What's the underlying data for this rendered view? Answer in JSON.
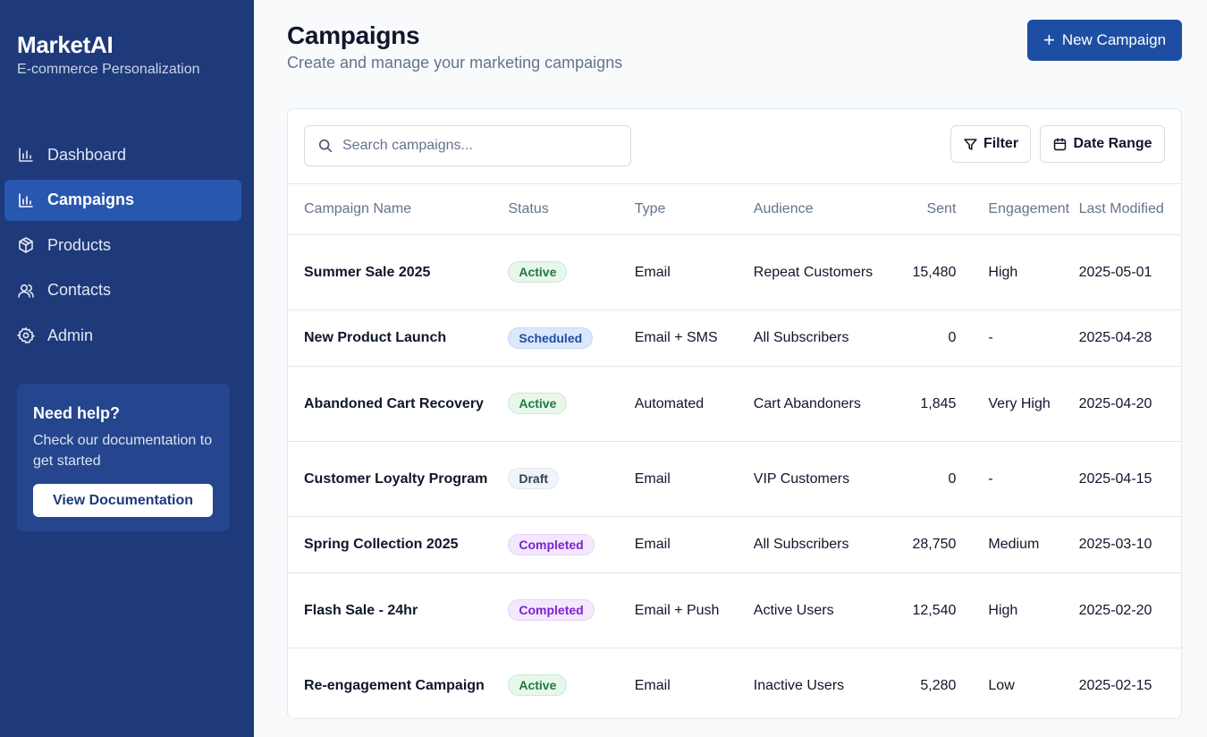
{
  "sidebar": {
    "brand_title": "MarketAI",
    "brand_subtitle": "E-commerce Personalization",
    "items": [
      {
        "label": "Dashboard",
        "icon": "bar-chart-icon"
      },
      {
        "label": "Campaigns",
        "icon": "bar-chart-icon",
        "active": true
      },
      {
        "label": "Products",
        "icon": "box-icon"
      },
      {
        "label": "Contacts",
        "icon": "users-icon"
      },
      {
        "label": "Admin",
        "icon": "gear-icon"
      }
    ],
    "help": {
      "title": "Need help?",
      "text": "Check our documentation to get started",
      "button": "View Documentation"
    }
  },
  "header": {
    "title": "Campaigns",
    "subtitle": "Create and manage your marketing campaigns",
    "new_button": "New Campaign"
  },
  "toolbar": {
    "search_placeholder": "Search campaigns...",
    "filter_label": "Filter",
    "date_range_label": "Date Range"
  },
  "table": {
    "columns": [
      "Campaign Name",
      "Status",
      "Type",
      "Audience",
      "Sent",
      "Engagement",
      "Last Modified"
    ],
    "rows": [
      {
        "name": "Summer Sale 2025",
        "status": "Active",
        "type": "Email",
        "audience": "Repeat Customers",
        "sent": "15,480",
        "engagement": "High",
        "modified": "2025-05-01"
      },
      {
        "name": "New Product Launch",
        "status": "Scheduled",
        "type": "Email + SMS",
        "audience": "All Subscribers",
        "sent": "0",
        "engagement": "-",
        "modified": "2025-04-28"
      },
      {
        "name": "Abandoned Cart Recovery",
        "status": "Active",
        "type": "Automated",
        "audience": "Cart Abandoners",
        "sent": "1,845",
        "engagement": "Very High",
        "modified": "2025-04-20"
      },
      {
        "name": "Customer Loyalty Program",
        "status": "Draft",
        "type": "Email",
        "audience": "VIP Customers",
        "sent": "0",
        "engagement": "-",
        "modified": "2025-04-15"
      },
      {
        "name": "Spring Collection 2025",
        "status": "Completed",
        "type": "Email",
        "audience": "All Subscribers",
        "sent": "28,750",
        "engagement": "Medium",
        "modified": "2025-03-10"
      },
      {
        "name": "Flash Sale - 24hr",
        "status": "Completed",
        "type": "Email + Push",
        "audience": "Active Users",
        "sent": "12,540",
        "engagement": "High",
        "modified": "2025-02-20"
      },
      {
        "name": "Re-engagement Campaign",
        "status": "Active",
        "type": "Email",
        "audience": "Inactive Users",
        "sent": "5,280",
        "engagement": "Low",
        "modified": "2025-02-15"
      }
    ]
  },
  "colors": {
    "sidebar_bg": "#1e3a7b",
    "active_nav": "#2857b0",
    "primary": "#1e4ea3"
  }
}
